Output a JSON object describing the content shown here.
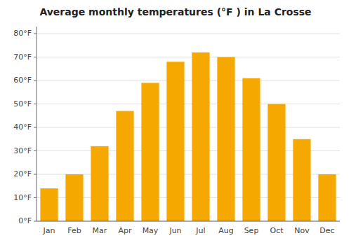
{
  "chart_data": {
    "type": "bar",
    "title": "Average monthly temperatures (°F ) in La Crosse",
    "categories": [
      "Jan",
      "Feb",
      "Mar",
      "Apr",
      "May",
      "Jun",
      "Jul",
      "Aug",
      "Sep",
      "Oct",
      "Nov",
      "Dec"
    ],
    "values": [
      14,
      20,
      32,
      47,
      59,
      68,
      72,
      70,
      61,
      50,
      35,
      20
    ],
    "color": "#F5A800",
    "ylim": [
      0,
      83
    ],
    "yticks": [
      {
        "value": 0,
        "label": "0°F"
      },
      {
        "value": 10,
        "label": "10°F"
      },
      {
        "value": 20,
        "label": "20°F"
      },
      {
        "value": 30,
        "label": "30°F"
      },
      {
        "value": 40,
        "label": "40°F"
      },
      {
        "value": 50,
        "label": "50°F"
      },
      {
        "value": 60,
        "label": "60°F"
      },
      {
        "value": 70,
        "label": "70°F"
      },
      {
        "value": 80,
        "label": "80°F"
      }
    ],
    "grid": true
  }
}
